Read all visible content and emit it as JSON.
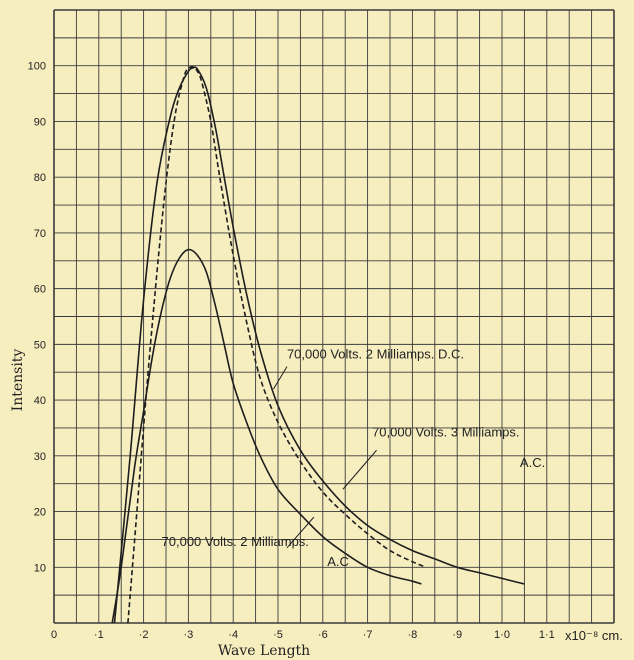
{
  "chart_data": {
    "type": "line",
    "xlabel": "Wave Length",
    "ylabel": "Intensity",
    "x_unit": "x10⁻⁸ cm.",
    "xlim": [
      0,
      1.25
    ],
    "ylim": [
      0,
      110
    ],
    "grid": true,
    "x_ticks": [
      {
        "v": 0,
        "label": "0"
      },
      {
        "v": 0.1,
        "label": "·1"
      },
      {
        "v": 0.2,
        "label": "·2"
      },
      {
        "v": 0.3,
        "label": "·3"
      },
      {
        "v": 0.4,
        "label": "·4"
      },
      {
        "v": 0.5,
        "label": "·5"
      },
      {
        "v": 0.6,
        "label": "·6"
      },
      {
        "v": 0.7,
        "label": "·7"
      },
      {
        "v": 0.8,
        "label": "·8"
      },
      {
        "v": 0.9,
        "label": "·9"
      },
      {
        "v": 1.0,
        "label": "1·0"
      },
      {
        "v": 1.1,
        "label": "1·1"
      }
    ],
    "y_ticks": [
      {
        "v": 10,
        "label": "10"
      },
      {
        "v": 20,
        "label": "20"
      },
      {
        "v": 30,
        "label": "30"
      },
      {
        "v": 40,
        "label": "40"
      },
      {
        "v": 50,
        "label": "50"
      },
      {
        "v": 60,
        "label": "60"
      },
      {
        "v": 70,
        "label": "70"
      },
      {
        "v": 80,
        "label": "80"
      },
      {
        "v": 90,
        "label": "90"
      },
      {
        "v": 100,
        "label": "100"
      }
    ],
    "series": [
      {
        "name": "70,000 Volts. 2 Milliamps. D.C.",
        "style": "solid",
        "x": [
          0.135,
          0.17,
          0.2,
          0.23,
          0.26,
          0.28,
          0.3,
          0.31,
          0.32,
          0.34,
          0.36,
          0.38,
          0.4,
          0.43,
          0.46,
          0.5,
          0.55,
          0.6,
          0.65,
          0.7,
          0.75,
          0.8,
          0.85,
          0.9,
          0.95,
          1.0,
          1.05
        ],
        "y": [
          0,
          30,
          58,
          79,
          91,
          96,
          99,
          99.6,
          99.4,
          96,
          89,
          80,
          71,
          59,
          49,
          39,
          31,
          25.5,
          21,
          17.5,
          15,
          13,
          11.5,
          10,
          9,
          8,
          7
        ]
      },
      {
        "name": "70,000 Volts. 3 Milliamps. A.C.",
        "style": "dashed",
        "x": [
          0.165,
          0.19,
          0.21,
          0.23,
          0.25,
          0.27,
          0.29,
          0.3,
          0.31,
          0.32,
          0.33,
          0.35,
          0.37,
          0.4,
          0.43,
          0.46,
          0.5,
          0.55,
          0.6,
          0.65,
          0.7,
          0.75,
          0.8,
          0.83
        ],
        "y": [
          0,
          25,
          45,
          63,
          79,
          91,
          98,
          99.5,
          99.8,
          99,
          97,
          90,
          80,
          66,
          54,
          44,
          36,
          29,
          23.5,
          19.5,
          16,
          13,
          11,
          10
        ]
      },
      {
        "name": "70,000 Volts. 2 Milliamps. A.C.",
        "style": "solid",
        "x": [
          0.13,
          0.15,
          0.18,
          0.2,
          0.22,
          0.24,
          0.26,
          0.28,
          0.3,
          0.32,
          0.34,
          0.36,
          0.38,
          0.4,
          0.43,
          0.46,
          0.5,
          0.55,
          0.6,
          0.65,
          0.7,
          0.75,
          0.8,
          0.82
        ],
        "y": [
          0,
          10,
          28,
          38,
          48,
          56,
          62,
          65.5,
          67,
          66,
          63,
          57,
          50,
          43,
          36,
          30,
          24,
          19.5,
          15.5,
          12.5,
          10,
          8.5,
          7.5,
          7
        ]
      }
    ],
    "annotations": [
      {
        "text": "70,000 Volts. 2 Milliamps. D.C.",
        "x": 0.52,
        "y": 47.5
      },
      {
        "text": "70,000 Volts. 3 Milliamps.",
        "x": 0.71,
        "y": 33.5
      },
      {
        "text": "A.C.",
        "x": 1.04,
        "y": 28
      },
      {
        "text": "70,000 Volts. 2 Milliamps.",
        "x": 0.24,
        "y": 13.8
      },
      {
        "text": "A.C",
        "x": 0.61,
        "y": 10.2
      }
    ]
  }
}
